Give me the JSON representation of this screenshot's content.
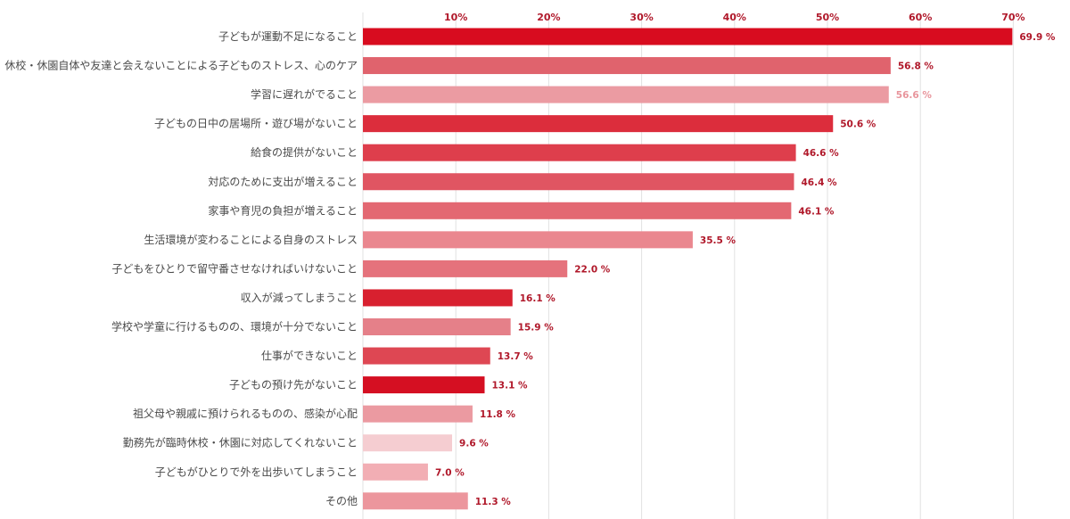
{
  "chart_data": {
    "type": "bar",
    "orientation": "horizontal",
    "title": "",
    "xlabel": "",
    "ylabel": "",
    "xlim": [
      0,
      70
    ],
    "ticks": [
      10,
      20,
      30,
      40,
      50,
      60,
      70
    ],
    "tick_labels": [
      "10%",
      "20%",
      "30%",
      "40%",
      "50%",
      "60%",
      "70%"
    ],
    "grid": true,
    "categories": [
      "子どもが運動不足になること",
      "休校・休園自体や友達と会えないことによる子どものストレス、心のケア",
      "学習に遅れがでること",
      "子どもの日中の居場所・遊び場がないこと",
      "給食の提供がないこと",
      "対応のために支出が増えること",
      "家事や育児の負担が増えること",
      "生活環境が変わることによる自身のストレス",
      "子どもをひとりで留守番させなければいけないこと",
      "収入が減ってしまうこと",
      "学校や学童に行けるものの、環境が十分でないこと",
      "仕事ができないこと",
      "子どもの預け先がないこと",
      "祖父母や親戚に預けられるものの、感染が心配",
      "勤務先が臨時休校・休園に対応してくれないこと",
      "子どもがひとりで外を出歩いてしまうこと",
      "その他"
    ],
    "values": [
      69.9,
      56.8,
      56.6,
      50.6,
      46.6,
      46.4,
      46.1,
      35.5,
      22.0,
      16.1,
      15.9,
      13.7,
      13.1,
      11.8,
      9.6,
      7.0,
      11.3
    ],
    "value_labels": [
      "69.9 %",
      "56.8 %",
      "56.6 %",
      "50.6 %",
      "46.6 %",
      "46.4 %",
      "46.1 %",
      "35.5 %",
      "22.0 %",
      "16.1 %",
      "15.9 %",
      "13.7 %",
      "13.1 %",
      "11.8 %",
      "9.6 %",
      "7.0 %",
      "11.3 %"
    ],
    "bar_colors": [
      "#d80c1f",
      "#e0636d",
      "#eb9ba2",
      "#dc2d3c",
      "#de3e4c",
      "#e05562",
      "#e36872",
      "#ea878f",
      "#e5727c",
      "#d8202f",
      "#e58089",
      "#de4753",
      "#d50f22",
      "#eb9aa1",
      "#f5cdd1",
      "#f2aeb4",
      "#ec969d"
    ],
    "label_colors": [
      "#b0182a",
      "#b0182a",
      "#e8959c",
      "#b0182a",
      "#b0182a",
      "#b0182a",
      "#b0182a",
      "#b0182a",
      "#b0182a",
      "#b0182a",
      "#b0182a",
      "#b0182a",
      "#b0182a",
      "#b0182a",
      "#b0182a",
      "#b0182a",
      "#b0182a"
    ]
  }
}
